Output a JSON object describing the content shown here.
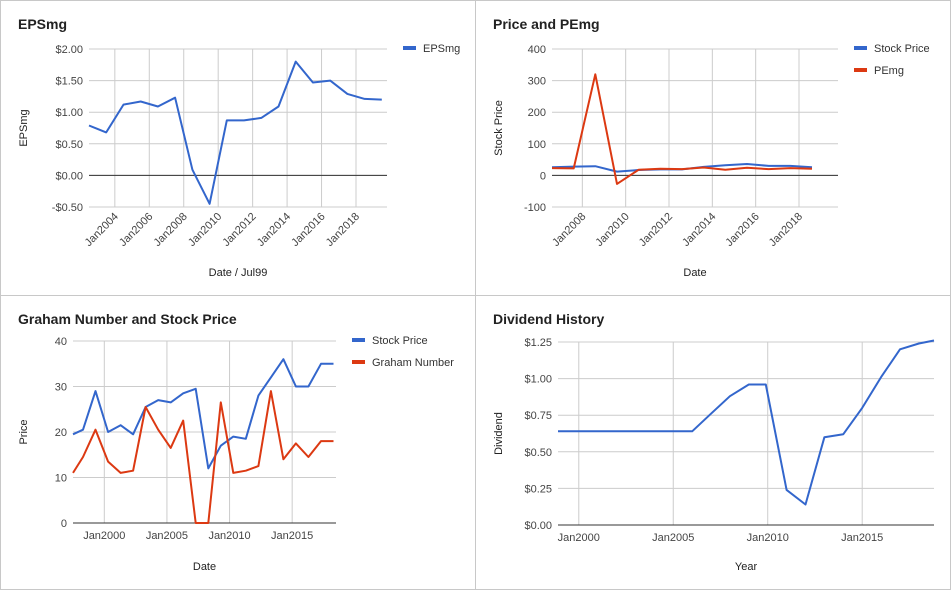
{
  "chart_data": [
    {
      "type": "line",
      "title": "EPSmg",
      "xlabel": "Date / Jul99",
      "ylabel": "EPSmg",
      "x_type": "year",
      "xlim": [
        2002.5,
        2019.8
      ],
      "ylim": [
        -0.5,
        2.0
      ],
      "yticks": [
        2.0,
        1.5,
        1.0,
        0.5,
        0.0,
        -0.5
      ],
      "ytick_labels": [
        "$2.00",
        "$1.50",
        "$1.00",
        "$0.50",
        "$0.00",
        "-$0.50"
      ],
      "xticks": [
        2004,
        2006,
        2008,
        2010,
        2012,
        2014,
        2016,
        2018
      ],
      "xtick_labels": [
        "Jan2004",
        "Jan2006",
        "Jan2008",
        "Jan2010",
        "Jan2012",
        "Jan2014",
        "Jan2016",
        "Jan2018"
      ],
      "xtick_rotation": -45,
      "zero_line": true,
      "grid": true,
      "legend": "top-right",
      "series": [
        {
          "name": "EPSmg",
          "color": "#3366cc",
          "x": [
            2002.5,
            2003.5,
            2004.5,
            2005.5,
            2006.5,
            2007.5,
            2008.5,
            2009.5,
            2010.5,
            2011.5,
            2012.5,
            2013.5,
            2014.5,
            2015.5,
            2016.5,
            2017.5,
            2018.5,
            2019.5
          ],
          "y": [
            0.79,
            0.68,
            1.12,
            1.17,
            1.09,
            1.23,
            0.09,
            -0.45,
            0.87,
            0.87,
            0.91,
            1.09,
            1.8,
            1.47,
            1.5,
            1.29,
            1.21,
            1.2
          ]
        }
      ]
    },
    {
      "type": "line",
      "title": "Price and PEmg",
      "xlabel": "Date",
      "ylabel": "Stock Price",
      "x_type": "year",
      "xlim": [
        2006.6,
        2019.8
      ],
      "ylim": [
        -100,
        400
      ],
      "yticks": [
        400,
        300,
        200,
        100,
        0,
        -100
      ],
      "ytick_labels": [
        "400",
        "300",
        "200",
        "100",
        "0",
        "-100"
      ],
      "xticks": [
        2008,
        2010,
        2012,
        2014,
        2016,
        2018
      ],
      "xtick_labels": [
        "Jan2008",
        "Jan2010",
        "Jan2012",
        "Jan2014",
        "Jan2016",
        "Jan2018"
      ],
      "xtick_rotation": -45,
      "zero_line": true,
      "grid": true,
      "legend": "top-right",
      "series": [
        {
          "name": "Stock Price",
          "color": "#3366cc",
          "x": [
            2006.6,
            2007.6,
            2008.6,
            2009.6,
            2010.6,
            2011.6,
            2012.6,
            2013.6,
            2014.6,
            2015.6,
            2016.6,
            2017.6,
            2018.6
          ],
          "y": [
            26,
            28,
            29,
            12,
            17,
            19,
            19,
            27,
            32,
            36,
            30,
            30,
            26
          ]
        },
        {
          "name": "PEmg",
          "color": "#dc3912",
          "x": [
            2006.6,
            2007.6,
            2008.6,
            2009.6,
            2010.6,
            2011.6,
            2012.6,
            2013.6,
            2014.6,
            2015.6,
            2016.6,
            2017.6,
            2018.6
          ],
          "y": [
            23,
            22,
            320,
            -27,
            18,
            21,
            20,
            25,
            18,
            24,
            20,
            23,
            21
          ]
        }
      ]
    },
    {
      "type": "line",
      "title": "Graham Number and Stock Price",
      "xlabel": "Date",
      "ylabel": "Price",
      "x_type": "year",
      "xlim": [
        1997.5,
        2018.5
      ],
      "ylim": [
        0,
        40
      ],
      "yticks": [
        40,
        30,
        20,
        10,
        0
      ],
      "ytick_labels": [
        "40",
        "30",
        "20",
        "10",
        "0"
      ],
      "xticks": [
        2000,
        2005,
        2010,
        2015
      ],
      "xtick_labels": [
        "Jan2000",
        "Jan2005",
        "Jan2010",
        "Jan2015"
      ],
      "xtick_rotation": 0,
      "zero_line": true,
      "grid": true,
      "legend": "top-right",
      "series": [
        {
          "name": "Stock Price",
          "color": "#3366cc",
          "x": [
            1997.5,
            1998.3,
            1999.3,
            2000.3,
            2001.3,
            2002.3,
            2003.3,
            2004.3,
            2005.3,
            2006.3,
            2007.3,
            2008.3,
            2009.3,
            2010.3,
            2011.3,
            2012.3,
            2013.3,
            2014.3,
            2015.3,
            2016.3,
            2017.3,
            2018.3
          ],
          "y": [
            19.5,
            20.5,
            29,
            20,
            21.5,
            19.5,
            25.5,
            27,
            26.5,
            28.5,
            29.5,
            12,
            17,
            19,
            18.5,
            28,
            32,
            36,
            30,
            30,
            35,
            35
          ]
        },
        {
          "name": "Graham Number",
          "color": "#dc3912",
          "x": [
            1997.5,
            1998.3,
            1999.3,
            2000.3,
            2001.3,
            2002.3,
            2003.3,
            2004.3,
            2005.3,
            2006.3,
            2007.3,
            2008.3,
            2009.3,
            2010.3,
            2011.3,
            2012.3,
            2013.3,
            2014.3,
            2015.3,
            2016.3,
            2017.3,
            2018.3
          ],
          "y": [
            11,
            14.5,
            20.5,
            13.5,
            11,
            11.5,
            25.5,
            20.5,
            16.5,
            22.5,
            0,
            0,
            26.5,
            11,
            11.5,
            12.5,
            29,
            14,
            17.5,
            14.5,
            18,
            18
          ]
        }
      ]
    },
    {
      "type": "line",
      "title": "Dividend History",
      "xlabel": "Year",
      "ylabel": "Dividend",
      "x_type": "year",
      "xlim": [
        1998.9,
        2018.8
      ],
      "ylim": [
        0,
        1.25
      ],
      "yticks": [
        1.25,
        1.0,
        0.75,
        0.5,
        0.25,
        0.0
      ],
      "ytick_labels": [
        "$1.25",
        "$1.00",
        "$0.75",
        "$0.50",
        "$0.25",
        "$0.00"
      ],
      "xticks": [
        2000,
        2005,
        2010,
        2015
      ],
      "xtick_labels": [
        "Jan2000",
        "Jan2005",
        "Jan2010",
        "Jan2015"
      ],
      "xtick_rotation": 0,
      "zero_line": true,
      "grid": true,
      "legend": "none",
      "series": [
        {
          "name": "Dividend",
          "color": "#3366cc",
          "x": [
            1998.9,
            2006,
            2007,
            2008,
            2009,
            2009.9,
            2011,
            2012,
            2013,
            2014,
            2015,
            2016,
            2017,
            2018,
            2018.8
          ],
          "y": [
            0.64,
            0.64,
            0.76,
            0.88,
            0.96,
            0.96,
            0.24,
            0.14,
            0.6,
            0.62,
            0.8,
            1.01,
            1.2,
            1.24,
            1.26
          ]
        }
      ]
    }
  ]
}
